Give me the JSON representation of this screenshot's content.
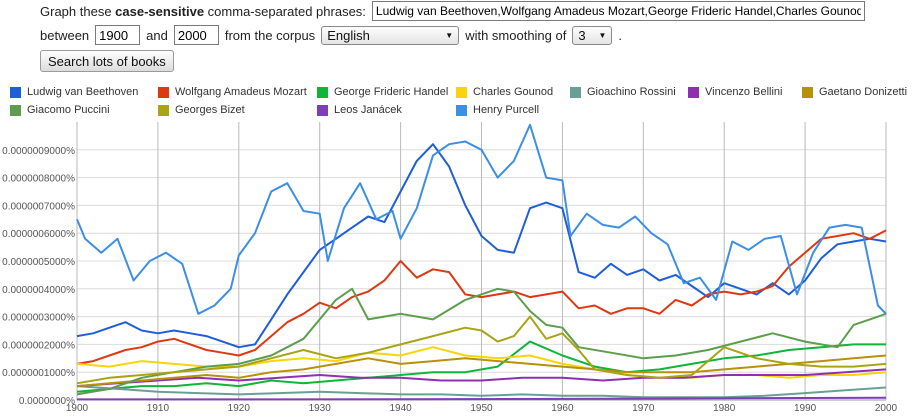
{
  "controls": {
    "graph_prefix": "Graph these ",
    "graph_bold": "case-sensitive",
    "graph_suffix": " comma-separated phrases:",
    "phrases_value": "Ludwig van Beethoven,Wolfgang Amadeus Mozart,George Frideric Handel,Charles Gounod,Gioachino Rossini,Vincenzo Bellini,Gaetano Donizetti,Giacomo Puccini,Georges Bizet,Leos Janácek,Henry Purcell",
    "between_label": "between",
    "year_start": "1900",
    "and_label": "and",
    "year_end": "2000",
    "corpus_label": "from the corpus",
    "corpus_value": "English",
    "smoothing_label": "with smoothing of",
    "smoothing_value": "3",
    "period": ".",
    "search_button": "Search lots of books"
  },
  "chart_data": {
    "type": "line",
    "xlim": [
      1900,
      2000
    ],
    "ylim": [
      0,
      1e-05
    ],
    "x_ticks": [
      1900,
      1910,
      1920,
      1930,
      1940,
      1950,
      1960,
      1970,
      1980,
      1990,
      2000
    ],
    "x_tick_labels": [
      "1900",
      "1910",
      "1920",
      "1930",
      "1940",
      "1950",
      "1960",
      "1970",
      "1980",
      "1990",
      "2000"
    ],
    "y_ticks": [
      0,
      1e-06,
      2e-06,
      3e-06,
      4e-06,
      5e-06,
      6e-06,
      7e-06,
      8e-06,
      9e-06
    ],
    "y_tick_labels": [
      "0.00000000%",
      "0.0000001000%",
      "0.0000002000%",
      "0.0000003000%",
      "0.0000004000%",
      "0.0000005000%",
      "0.0000006000%",
      "0.0000007000%",
      "0.0000008000%",
      "0.0000009000%"
    ],
    "y_tick_labels_display": [
      "0.0000000%",
      "0.0000001000%",
      "0.0000002000%",
      "0.0000003000%",
      "0.0000004000%",
      "0.0000005000%",
      "0.0000006000%",
      "0.0000007000%",
      "0.0000008000%",
      "0.0000009000%"
    ],
    "grid": true,
    "legend_position": "top",
    "series": [
      {
        "name": "Ludwig van Beethoven",
        "color": "#1f5ed8",
        "x": [
          1900,
          1902,
          1904,
          1906,
          1908,
          1910,
          1912,
          1914,
          1916,
          1918,
          1920,
          1922,
          1924,
          1926,
          1928,
          1930,
          1932,
          1934,
          1936,
          1938,
          1940,
          1942,
          1944,
          1946,
          1948,
          1950,
          1952,
          1954,
          1956,
          1958,
          1960,
          1962,
          1964,
          1966,
          1968,
          1970,
          1972,
          1974,
          1976,
          1978,
          1980,
          1982,
          1984,
          1986,
          1988,
          1990,
          1992,
          1994,
          1996,
          1998,
          2000
        ],
        "y": [
          2.3,
          2.4,
          2.6,
          2.8,
          2.5,
          2.4,
          2.5,
          2.4,
          2.3,
          2.1,
          1.9,
          2.0,
          2.9,
          3.8,
          4.6,
          5.4,
          5.8,
          6.2,
          6.6,
          6.4,
          7.5,
          8.6,
          9.2,
          8.4,
          7.0,
          5.9,
          5.4,
          5.3,
          6.9,
          7.1,
          6.9,
          4.6,
          4.4,
          4.9,
          4.5,
          4.7,
          4.3,
          4.5,
          4.1,
          3.7,
          4.2,
          4.0,
          3.8,
          4.2,
          3.8,
          4.3,
          5.1,
          5.6,
          5.7,
          5.8,
          5.7
        ]
      },
      {
        "name": "Wolfgang Amadeus Mozart",
        "color": "#dc3912",
        "x": [
          1900,
          1902,
          1904,
          1906,
          1908,
          1910,
          1912,
          1914,
          1916,
          1918,
          1920,
          1922,
          1924,
          1926,
          1928,
          1930,
          1932,
          1934,
          1936,
          1938,
          1940,
          1942,
          1944,
          1946,
          1948,
          1950,
          1952,
          1954,
          1956,
          1958,
          1960,
          1962,
          1964,
          1966,
          1968,
          1970,
          1972,
          1974,
          1976,
          1978,
          1980,
          1982,
          1984,
          1986,
          1988,
          1990,
          1992,
          1994,
          1996,
          1998,
          2000
        ],
        "y": [
          1.3,
          1.4,
          1.6,
          1.8,
          1.9,
          2.1,
          2.2,
          2.0,
          1.8,
          1.7,
          1.6,
          1.8,
          2.3,
          2.8,
          3.1,
          3.5,
          3.3,
          3.7,
          3.9,
          4.3,
          5.0,
          4.4,
          4.7,
          4.6,
          3.8,
          3.7,
          3.8,
          3.9,
          3.7,
          3.8,
          3.9,
          3.3,
          3.4,
          3.1,
          3.3,
          3.3,
          3.1,
          3.6,
          3.4,
          3.8,
          3.9,
          3.8,
          3.9,
          4.1,
          4.8,
          5.3,
          5.8,
          5.9,
          6.0,
          5.8,
          6.1
        ]
      },
      {
        "name": "George Frideric Handel",
        "color": "#0fb538",
        "x": [
          1900,
          1904,
          1908,
          1912,
          1916,
          1920,
          1924,
          1928,
          1932,
          1936,
          1940,
          1944,
          1948,
          1952,
          1956,
          1960,
          1964,
          1968,
          1972,
          1976,
          1980,
          1984,
          1988,
          1992,
          1996,
          2000
        ],
        "y": [
          0.3,
          0.4,
          0.5,
          0.5,
          0.6,
          0.5,
          0.7,
          0.6,
          0.7,
          0.8,
          0.9,
          1.0,
          1.0,
          1.2,
          2.1,
          1.6,
          1.2,
          1.0,
          1.1,
          1.3,
          1.5,
          1.6,
          1.8,
          1.9,
          2.0,
          2.0
        ]
      },
      {
        "name": "Charles Gounod",
        "color": "#f7d508",
        "x": [
          1900,
          1904,
          1908,
          1912,
          1916,
          1920,
          1924,
          1928,
          1932,
          1936,
          1940,
          1944,
          1948,
          1952,
          1956,
          1960,
          1964,
          1968,
          1972,
          1976,
          1980,
          1984,
          1988,
          1992,
          1996,
          2000
        ],
        "y": [
          1.3,
          1.2,
          1.4,
          1.3,
          1.2,
          1.2,
          1.4,
          1.5,
          1.4,
          1.7,
          1.6,
          1.9,
          1.6,
          1.5,
          1.6,
          1.3,
          1.1,
          0.9,
          0.8,
          0.8,
          0.9,
          0.9,
          0.8,
          0.9,
          0.9,
          1.0
        ]
      },
      {
        "name": "Gioachino Rossini",
        "color": "#6a9f96",
        "x": [
          1900,
          1905,
          1910,
          1915,
          1920,
          1925,
          1930,
          1935,
          1940,
          1945,
          1950,
          1955,
          1960,
          1965,
          1970,
          1975,
          1980,
          1985,
          1990,
          1995,
          2000
        ],
        "y": [
          0.5,
          0.4,
          0.3,
          0.25,
          0.2,
          0.25,
          0.3,
          0.25,
          0.2,
          0.2,
          0.15,
          0.2,
          0.15,
          0.15,
          0.1,
          0.1,
          0.1,
          0.15,
          0.25,
          0.35,
          0.45
        ]
      },
      {
        "name": "Vincenzo Bellini",
        "color": "#8e30b0",
        "x": [
          1900,
          1905,
          1910,
          1915,
          1920,
          1925,
          1930,
          1935,
          1940,
          1945,
          1950,
          1955,
          1960,
          1965,
          1970,
          1975,
          1980,
          1985,
          1990,
          1995,
          2000
        ],
        "y": [
          0.5,
          0.6,
          0.7,
          0.8,
          0.7,
          0.8,
          0.9,
          0.8,
          0.8,
          0.7,
          0.7,
          0.8,
          0.8,
          0.7,
          0.8,
          0.8,
          0.9,
          0.9,
          0.9,
          1.0,
          1.1
        ]
      },
      {
        "name": "Gaetano Donizetti",
        "color": "#b8900a",
        "x": [
          1900,
          1904,
          1908,
          1912,
          1916,
          1920,
          1924,
          1928,
          1932,
          1936,
          1940,
          1944,
          1948,
          1952,
          1956,
          1960,
          1964,
          1968,
          1972,
          1976,
          1980,
          1984,
          1988,
          1992,
          1996,
          2000
        ],
        "y": [
          0.5,
          0.6,
          0.7,
          0.8,
          0.9,
          0.8,
          1.0,
          1.1,
          1.3,
          1.5,
          1.3,
          1.4,
          1.5,
          1.4,
          1.3,
          1.2,
          1.1,
          1.0,
          1.0,
          1.0,
          1.1,
          1.2,
          1.3,
          1.4,
          1.5,
          1.6
        ]
      },
      {
        "name": "Giacomo Puccini",
        "color": "#5c9e4c",
        "x": [
          1900,
          1904,
          1908,
          1912,
          1916,
          1920,
          1924,
          1928,
          1932,
          1934,
          1936,
          1940,
          1944,
          1948,
          1952,
          1954,
          1956,
          1958,
          1960,
          1962,
          1966,
          1970,
          1974,
          1978,
          1982,
          1986,
          1990,
          1994,
          1996,
          1998,
          2000
        ],
        "y": [
          0.2,
          0.4,
          0.8,
          1.0,
          1.2,
          1.3,
          1.6,
          2.2,
          3.6,
          4.0,
          2.9,
          3.1,
          2.9,
          3.6,
          4.0,
          3.9,
          3.2,
          2.7,
          2.6,
          1.9,
          1.7,
          1.5,
          1.6,
          1.8,
          2.1,
          2.4,
          2.1,
          1.9,
          2.7,
          2.9,
          3.1
        ]
      },
      {
        "name": "Georges Bizet",
        "color": "#a9a316",
        "x": [
          1900,
          1904,
          1908,
          1912,
          1916,
          1920,
          1924,
          1928,
          1932,
          1936,
          1940,
          1944,
          1948,
          1950,
          1952,
          1954,
          1956,
          1958,
          1960,
          1962,
          1964,
          1968,
          1972,
          1976,
          1980,
          1984,
          1988,
          1992,
          1996,
          2000
        ],
        "y": [
          0.6,
          0.8,
          0.9,
          1.0,
          1.1,
          1.2,
          1.5,
          1.8,
          1.5,
          1.7,
          2.0,
          2.3,
          2.6,
          2.5,
          2.1,
          2.3,
          3.0,
          2.2,
          2.4,
          1.8,
          1.1,
          0.9,
          0.8,
          0.9,
          1.9,
          1.5,
          1.3,
          1.2,
          1.2,
          1.3
        ]
      },
      {
        "name": "Leos Janácek",
        "color": "#7e3fb5",
        "x": [
          1900,
          1920,
          1940,
          1960,
          1980,
          2000
        ],
        "y": [
          0.02,
          0.02,
          0.03,
          0.04,
          0.06,
          0.08
        ]
      },
      {
        "name": "Henry Purcell",
        "color": "#3c8ee6",
        "x": [
          1900,
          1901,
          1903,
          1905,
          1907,
          1909,
          1911,
          1913,
          1915,
          1917,
          1919,
          1920,
          1922,
          1924,
          1926,
          1928,
          1930,
          1931,
          1933,
          1935,
          1937,
          1939,
          1940,
          1942,
          1944,
          1946,
          1948,
          1950,
          1952,
          1954,
          1956,
          1958,
          1960,
          1961,
          1963,
          1965,
          1967,
          1969,
          1971,
          1973,
          1975,
          1977,
          1979,
          1981,
          1983,
          1985,
          1987,
          1989,
          1991,
          1993,
          1995,
          1997,
          1999,
          2000
        ],
        "y": [
          6.5,
          5.8,
          5.3,
          5.8,
          4.3,
          5.0,
          5.3,
          4.9,
          3.1,
          3.4,
          4.0,
          5.2,
          6.0,
          7.5,
          7.8,
          6.8,
          6.7,
          5.0,
          6.9,
          7.8,
          6.5,
          6.8,
          5.8,
          6.9,
          8.8,
          9.2,
          9.3,
          9.0,
          8.0,
          8.6,
          9.9,
          8.0,
          7.9,
          5.9,
          6.7,
          6.3,
          6.2,
          6.6,
          6.0,
          5.6,
          4.2,
          4.4,
          3.6,
          5.7,
          5.4,
          5.8,
          5.9,
          3.8,
          5.3,
          6.2,
          6.3,
          6.2,
          3.4,
          3.1
        ]
      }
    ]
  }
}
